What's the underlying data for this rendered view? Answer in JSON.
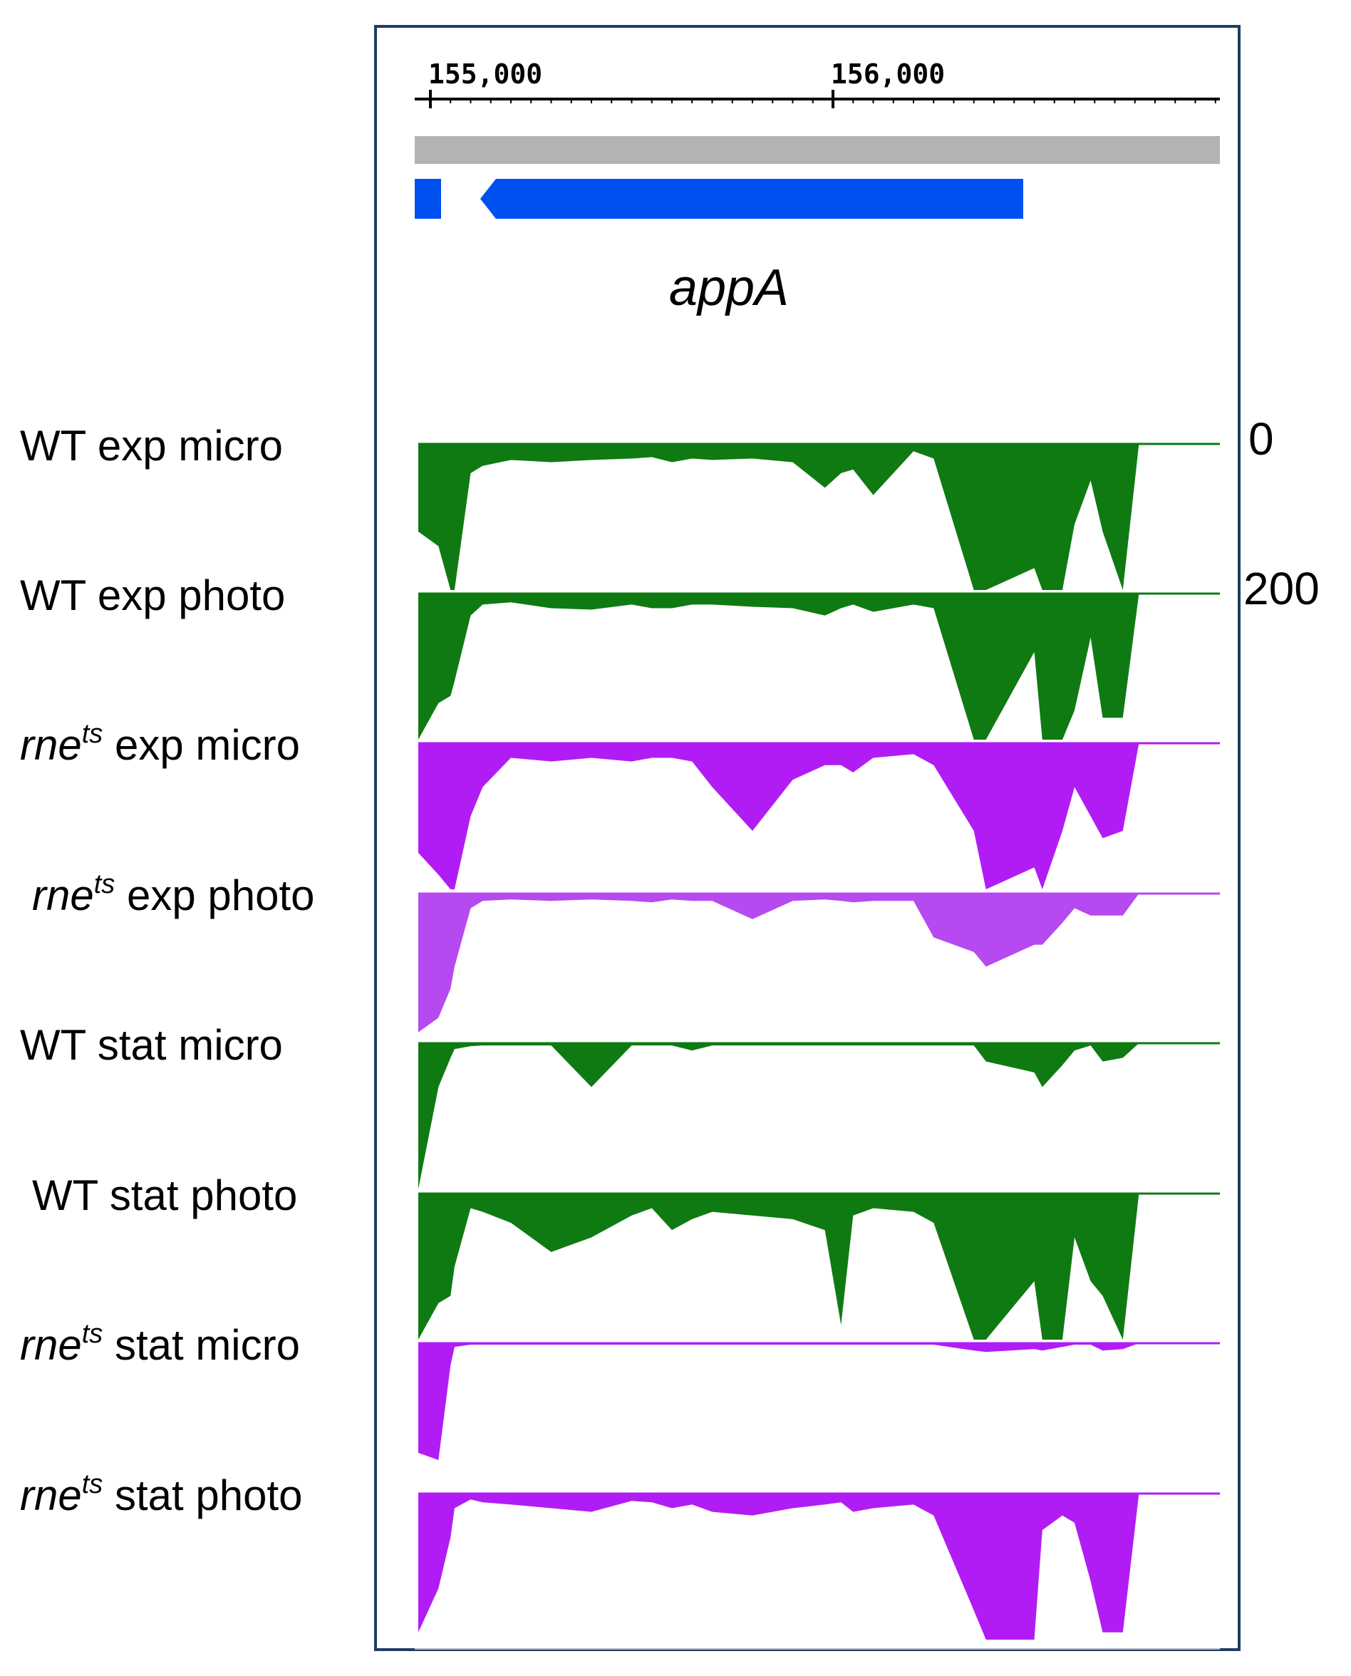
{
  "chart_data": {
    "type": "area",
    "region": {
      "ruler_ticks": [
        "155,000",
        "156,000"
      ],
      "gene_label": "appA",
      "gene_strand": "reverse"
    },
    "scale_labels": {
      "top": "0",
      "bottom": "200"
    },
    "colors": {
      "green": "#0f7a12",
      "purple": "#b21cf4",
      "purple_light": "#b649ef",
      "gene": "#0050f0",
      "grey_bar": "#b3b3b3",
      "frame": "#1f3d63"
    },
    "coverage_positions": [
      154.97,
      155.02,
      155.05,
      155.06,
      155.1,
      155.13,
      155.2,
      155.3,
      155.4,
      155.5,
      155.55,
      155.6,
      155.65,
      155.7,
      155.8,
      155.9,
      155.98,
      156.02,
      156.05,
      156.1,
      156.2,
      156.25,
      156.35,
      156.38,
      156.5,
      156.52,
      156.57,
      156.6,
      156.64,
      156.67,
      156.72,
      156.76,
      156.77
    ],
    "y_range": [
      0,
      200
    ],
    "series": [
      {
        "label": [
          "WT",
          "exp",
          "micro"
        ],
        "color_key": "green",
        "values": [
          120,
          140,
          200,
          200,
          40,
          30,
          22,
          25,
          22,
          20,
          18,
          25,
          20,
          22,
          20,
          25,
          60,
          40,
          35,
          70,
          10,
          20,
          200,
          200,
          170,
          200,
          200,
          110,
          50,
          120,
          200,
          0,
          0
        ]
      },
      {
        "label": [
          "WT",
          "exp",
          "photo"
        ],
        "color_key": "green",
        "values": [
          200,
          150,
          140,
          120,
          30,
          15,
          12,
          20,
          22,
          15,
          20,
          20,
          15,
          15,
          18,
          20,
          30,
          20,
          15,
          25,
          15,
          20,
          200,
          200,
          80,
          200,
          200,
          160,
          60,
          170,
          170,
          0,
          0
        ]
      },
      {
        "label": [
          "rne",
          "exp",
          "micro"
        ],
        "sup": "ts",
        "color_key": "purple",
        "values": [
          150,
          180,
          200,
          200,
          100,
          60,
          20,
          25,
          20,
          25,
          20,
          20,
          25,
          60,
          120,
          50,
          30,
          30,
          40,
          20,
          15,
          30,
          120,
          200,
          170,
          200,
          120,
          60,
          100,
          130,
          120,
          0,
          0
        ]
      },
      {
        "label": [
          "rne",
          "exp",
          "photo"
        ],
        "sup": "ts",
        "color_key": "purple_light",
        "values": [
          190,
          170,
          130,
          100,
          20,
          10,
          8,
          10,
          8,
          10,
          12,
          8,
          10,
          10,
          35,
          10,
          8,
          10,
          12,
          10,
          10,
          60,
          80,
          100,
          70,
          70,
          40,
          20,
          30,
          30,
          30,
          0,
          0
        ]
      },
      {
        "label": [
          "WT",
          "stat",
          "micro"
        ],
        "color_key": "green",
        "values": [
          200,
          60,
          20,
          8,
          4,
          3,
          3,
          3,
          60,
          3,
          3,
          3,
          10,
          3,
          3,
          3,
          3,
          3,
          3,
          3,
          3,
          3,
          3,
          25,
          40,
          60,
          30,
          10,
          3,
          25,
          20,
          0,
          0
        ]
      },
      {
        "label": [
          "WT",
          "stat",
          "photo"
        ],
        "color_key": "green",
        "values": [
          200,
          150,
          140,
          100,
          20,
          25,
          40,
          80,
          60,
          30,
          20,
          50,
          35,
          25,
          30,
          35,
          50,
          180,
          30,
          20,
          25,
          40,
          200,
          200,
          120,
          200,
          200,
          60,
          120,
          140,
          200,
          0,
          0
        ]
      },
      {
        "label": [
          "rne",
          "stat",
          "micro"
        ],
        "sup": "ts",
        "color_key": "purple",
        "values": [
          150,
          160,
          30,
          5,
          2,
          2,
          2,
          2,
          2,
          2,
          2,
          2,
          2,
          2,
          2,
          2,
          2,
          2,
          2,
          2,
          2,
          2,
          10,
          12,
          8,
          10,
          5,
          2,
          2,
          10,
          8,
          0,
          0
        ]
      },
      {
        "label": [
          "rne",
          "stat",
          "photo"
        ],
        "sup": "ts",
        "color_key": "purple",
        "values": [
          190,
          130,
          60,
          20,
          8,
          12,
          15,
          20,
          25,
          10,
          12,
          20,
          15,
          25,
          30,
          20,
          15,
          12,
          25,
          20,
          15,
          30,
          160,
          200,
          200,
          50,
          30,
          40,
          120,
          190,
          190,
          0,
          0
        ]
      }
    ]
  }
}
